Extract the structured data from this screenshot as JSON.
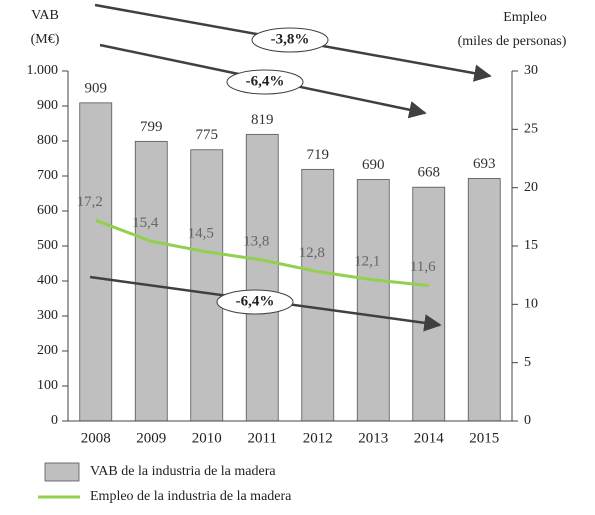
{
  "chart_data": {
    "type": "bar",
    "categories": [
      "2008",
      "2009",
      "2010",
      "2011",
      "2012",
      "2013",
      "2014",
      "2015"
    ],
    "series": [
      {
        "name": "VAB de la industria de la madera",
        "type": "bar",
        "color": "#bfbfbf",
        "values": [
          909,
          799,
          775,
          819,
          719,
          690,
          668,
          693
        ]
      },
      {
        "name": "Empleo de la industria de la madera",
        "type": "line",
        "color": "#92d050",
        "axis": "y2",
        "values": [
          17.2,
          15.4,
          14.5,
          13.8,
          12.8,
          12.1,
          11.6,
          null
        ],
        "value_labels": [
          "17,2",
          "15,4",
          "14,5",
          "13,8",
          "12,8",
          "12,1",
          "11,6",
          null
        ]
      }
    ],
    "ylabel": [
      "VAB",
      "(M€)"
    ],
    "y2label": [
      "Empleo",
      "(miles de personas)"
    ],
    "ylim": [
      0,
      1000
    ],
    "yticks": [
      0,
      100,
      200,
      300,
      400,
      500,
      600,
      700,
      800,
      900,
      {
        "value": 1000,
        "label": "1.000"
      }
    ],
    "y2lim": [
      0,
      30
    ],
    "y2ticks": [
      0,
      5,
      10,
      15,
      20,
      25,
      30
    ],
    "annotations": [
      "-3,8%",
      "-6,4%",
      "-6,4%"
    ]
  }
}
